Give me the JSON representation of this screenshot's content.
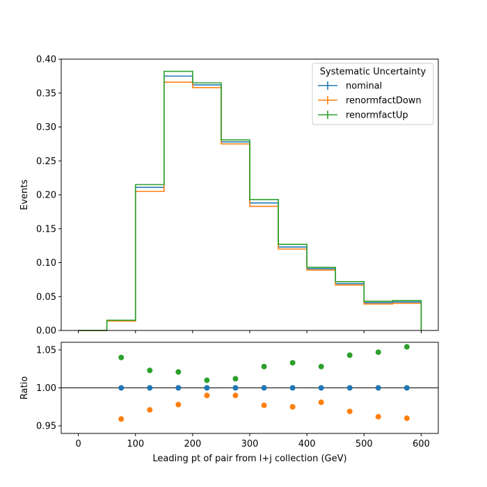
{
  "chart_data": [
    {
      "type": "histogram-step",
      "bin_edges": [
        0,
        50,
        100,
        150,
        200,
        250,
        300,
        350,
        400,
        450,
        500,
        550,
        600
      ],
      "series": [
        {
          "name": "nominal",
          "color": "#1f77b4",
          "values": [
            0.0,
            0.0145,
            0.211,
            0.375,
            0.362,
            0.278,
            0.188,
            0.123,
            0.091,
            0.069,
            0.041,
            0.042
          ]
        },
        {
          "name": "renormfactDown",
          "color": "#ff7f0e",
          "values": [
            0.0,
            0.0139,
            0.205,
            0.366,
            0.358,
            0.275,
            0.183,
            0.12,
            0.089,
            0.067,
            0.039,
            0.04
          ]
        },
        {
          "name": "renormfactUp",
          "color": "#2ca02c",
          "values": [
            0.0,
            0.0151,
            0.215,
            0.382,
            0.365,
            0.281,
            0.193,
            0.127,
            0.093,
            0.072,
            0.043,
            0.044
          ]
        }
      ],
      "ylabel": "Events",
      "ylim": [
        0,
        0.4
      ],
      "yticks": [
        "0.00",
        "0.05",
        "0.10",
        "0.15",
        "0.20",
        "0.25",
        "0.30",
        "0.35",
        "0.40"
      ],
      "xlim": [
        -30,
        630
      ],
      "legend": {
        "title": "Systematic Uncertainty",
        "placement": "top-right"
      }
    },
    {
      "type": "scatter",
      "x": [
        75,
        125,
        175,
        225,
        275,
        325,
        375,
        425,
        475,
        525,
        575
      ],
      "series": [
        {
          "name": "nominal",
          "color": "#1f77b4",
          "values": [
            1.0,
            1.0,
            1.0,
            1.0,
            1.0,
            1.0,
            1.0,
            1.0,
            1.0,
            1.0,
            1.0
          ]
        },
        {
          "name": "renormfactDown",
          "color": "#ff7f0e",
          "values": [
            0.959,
            0.971,
            0.978,
            0.99,
            0.99,
            0.977,
            0.975,
            0.981,
            0.969,
            0.962,
            0.96
          ]
        },
        {
          "name": "renormfactUp",
          "color": "#2ca02c",
          "values": [
            1.04,
            1.023,
            1.021,
            1.01,
            1.012,
            1.028,
            1.033,
            1.028,
            1.043,
            1.047,
            1.054
          ]
        }
      ],
      "reference_line": 1.0,
      "ylabel": "Ratio",
      "xlabel": "Leading pt of pair from l+j collection (GeV)",
      "ylim": [
        0.94,
        1.06
      ],
      "yticks": [
        "0.95",
        "1.00",
        "1.05"
      ],
      "xlim": [
        -30,
        630
      ],
      "xticks": [
        "0",
        "100",
        "200",
        "300",
        "400",
        "500",
        "600"
      ]
    }
  ]
}
